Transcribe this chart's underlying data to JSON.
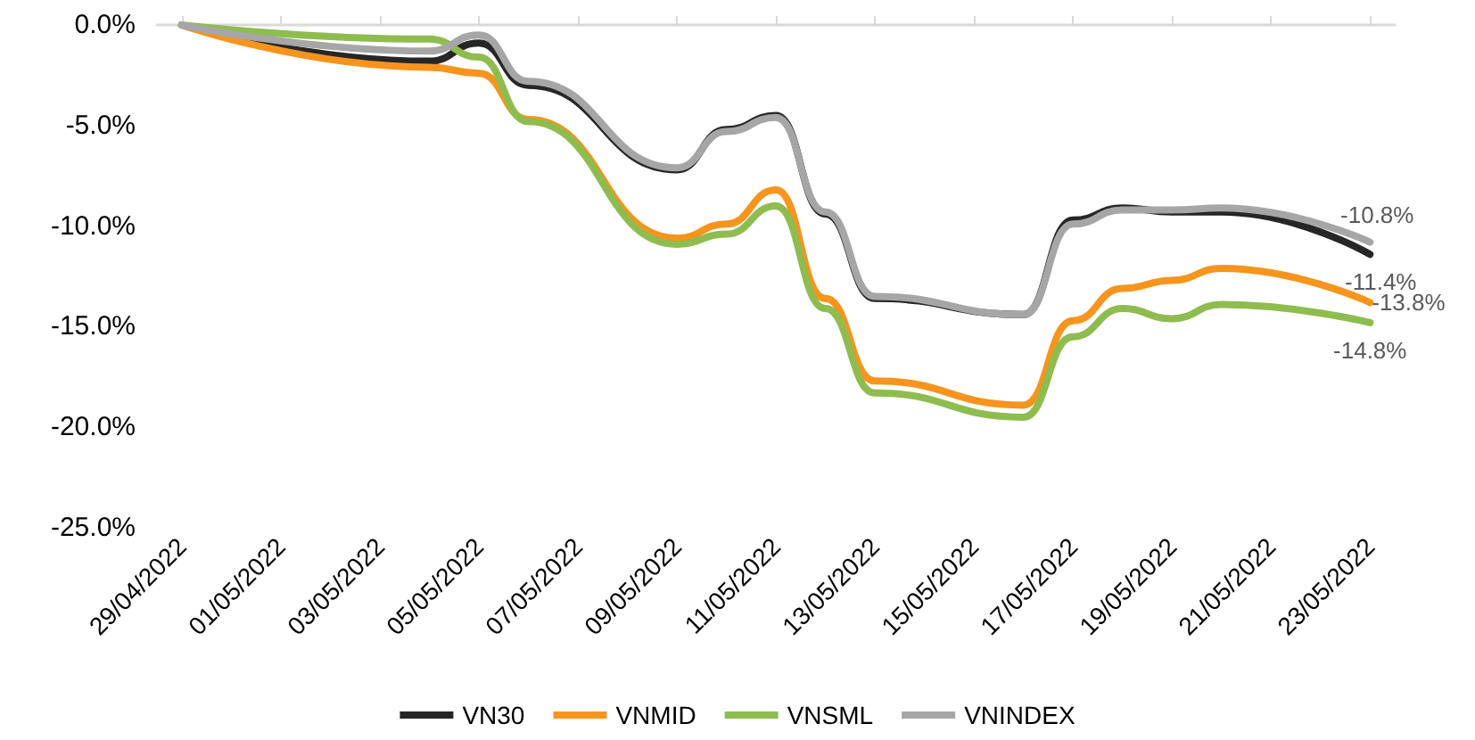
{
  "chart_data": {
    "type": "line",
    "x": [
      "2022-04-29",
      "2022-05-04",
      "2022-05-05",
      "2022-05-06",
      "2022-05-09",
      "2022-05-10",
      "2022-05-11",
      "2022-05-12",
      "2022-05-13",
      "2022-05-16",
      "2022-05-17",
      "2022-05-18",
      "2022-05-19",
      "2022-05-20",
      "2022-05-23"
    ],
    "series": [
      {
        "name": "VN30",
        "color": "#262626",
        "values": [
          0,
          -1.8,
          -0.9,
          -3.0,
          -7.2,
          -5.2,
          -4.5,
          -9.4,
          -13.6,
          -14.4,
          -9.7,
          -9.1,
          -9.3,
          -9.3,
          -11.4
        ],
        "value_labels": [
          null,
          null,
          null,
          null,
          null,
          null,
          null,
          null,
          null,
          null,
          null,
          null,
          null,
          null,
          "-11.4%"
        ]
      },
      {
        "name": "VNMID",
        "color": "#f7941d",
        "values": [
          0,
          -2.1,
          -2.4,
          -4.7,
          -10.6,
          -9.9,
          -8.2,
          -13.6,
          -17.7,
          -18.9,
          -14.7,
          -13.1,
          -12.7,
          -12.1,
          -13.8
        ],
        "value_labels": [
          null,
          null,
          null,
          null,
          null,
          null,
          null,
          null,
          null,
          null,
          null,
          null,
          null,
          null,
          "-13.8%"
        ]
      },
      {
        "name": "VNSML",
        "color": "#8fbc4f",
        "values": [
          0,
          -0.7,
          -1.6,
          -4.8,
          -10.9,
          -10.4,
          -9.0,
          -14.1,
          -18.3,
          -19.5,
          -15.5,
          -14.1,
          -14.6,
          -13.9,
          -14.8
        ],
        "value_labels": [
          null,
          null,
          null,
          null,
          null,
          null,
          null,
          null,
          null,
          null,
          null,
          null,
          null,
          null,
          "-14.8%"
        ]
      },
      {
        "name": "VNINDEX",
        "color": "#a6a6a6",
        "values": [
          0,
          -1.3,
          -0.5,
          -2.8,
          -7.1,
          -5.3,
          -4.6,
          -9.3,
          -13.5,
          -14.4,
          -9.9,
          -9.2,
          -9.2,
          -9.1,
          -10.8
        ],
        "value_labels": [
          null,
          null,
          null,
          null,
          null,
          null,
          null,
          null,
          null,
          null,
          null,
          null,
          null,
          null,
          "-10.8%"
        ]
      }
    ],
    "xlim": [
      "2022-04-28T12:00",
      "2022-05-23T12:00"
    ],
    "xticks": [
      {
        "value": "2022-04-29",
        "label": "29/04/2022"
      },
      {
        "value": "2022-05-01",
        "label": "01/05/2022"
      },
      {
        "value": "2022-05-03",
        "label": "03/05/2022"
      },
      {
        "value": "2022-05-05",
        "label": "05/05/2022"
      },
      {
        "value": "2022-05-07",
        "label": "07/05/2022"
      },
      {
        "value": "2022-05-09",
        "label": "09/05/2022"
      },
      {
        "value": "2022-05-11",
        "label": "11/05/2022"
      },
      {
        "value": "2022-05-13",
        "label": "13/05/2022"
      },
      {
        "value": "2022-05-15",
        "label": "15/05/2022"
      },
      {
        "value": "2022-05-17",
        "label": "17/05/2022"
      },
      {
        "value": "2022-05-19",
        "label": "19/05/2022"
      },
      {
        "value": "2022-05-21",
        "label": "21/05/2022"
      },
      {
        "value": "2022-05-23",
        "label": "23/05/2022"
      }
    ],
    "ylim": [
      -25,
      0
    ],
    "yticks": [
      {
        "value": -25,
        "label": "-25.0%"
      },
      {
        "value": -20,
        "label": "-20.0%"
      },
      {
        "value": -15,
        "label": "-15.0%"
      },
      {
        "value": -10,
        "label": "-10.0%"
      },
      {
        "value": -5,
        "label": "-5.0%"
      },
      {
        "value": 0,
        "label": "0.0%"
      }
    ],
    "grid": false,
    "legend": "bottom",
    "marker": "none",
    "line_style": "solid"
  }
}
